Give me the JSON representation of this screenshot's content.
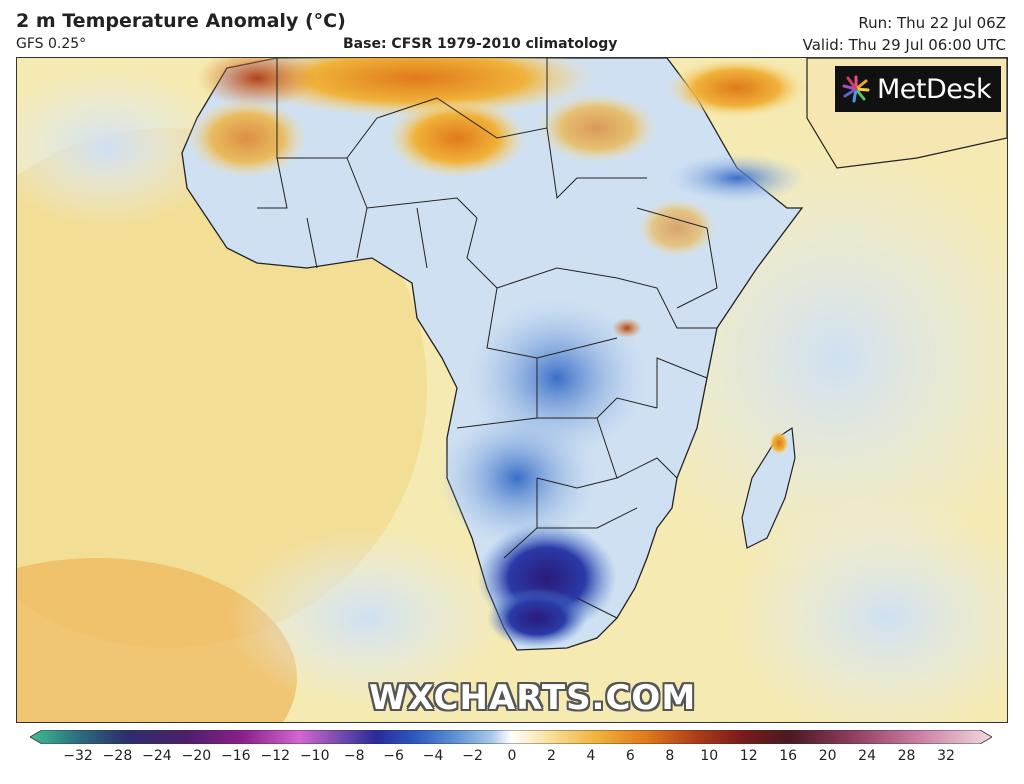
{
  "header": {
    "title": "2 m Temperature Anomaly (°C)",
    "model": "GFS 0.25°",
    "base": "Base: CFSR 1979-2010 climatology",
    "run": "Run: Thu 22 Jul 06Z",
    "valid": "Valid: Thu 29 Jul 06:00 UTC"
  },
  "logo": {
    "text": "MetDesk",
    "icon": "metdesk-burst-logo-icon"
  },
  "watermark": "WXCHARTS.COM",
  "legend": {
    "ticks": [
      "−32",
      "−28",
      "−24",
      "−20",
      "−16",
      "−12",
      "−10",
      "−8",
      "−6",
      "−4",
      "−2",
      "0",
      "2",
      "4",
      "6",
      "8",
      "10",
      "12",
      "16",
      "20",
      "24",
      "28",
      "32"
    ],
    "colors": [
      "#3dbf8f",
      "#2b2f6e",
      "#4b1f6b",
      "#8a1f8a",
      "#c030b8",
      "#d565d0",
      "#5a3d9c",
      "#2a2a9c",
      "#2d58c0",
      "#5a8fd4",
      "#a9c8ea",
      "#ffffff",
      "#f8e09a",
      "#f0b23a",
      "#e07a1a",
      "#b0401a",
      "#7a1a1a",
      "#4a1a20",
      "#8a3a5a",
      "#c87aa0",
      "#e8b8cc",
      "#f2d8e2"
    ]
  },
  "map": {
    "variable": "2 m Temperature Anomaly",
    "units": "°C",
    "region": "Africa"
  }
}
